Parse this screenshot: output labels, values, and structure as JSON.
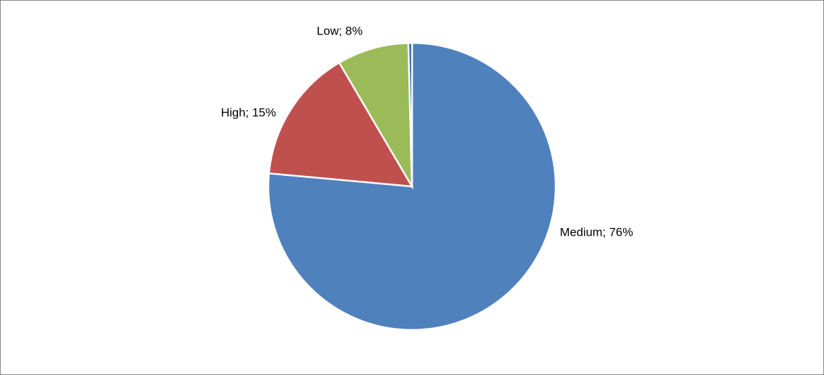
{
  "chart_data": {
    "type": "pie",
    "categories": [
      "Medium",
      "High",
      "Low",
      null
    ],
    "values": [
      76,
      15,
      8,
      0.4
    ],
    "value_labels": [
      "Medium; 76%",
      "High; 15%",
      "Low; 8%",
      null
    ],
    "colors": [
      "#4f81bd",
      "#c0504d",
      "#9bbb59",
      "#1f5fa8"
    ],
    "start_angle": 0,
    "direction": "clockwise"
  }
}
